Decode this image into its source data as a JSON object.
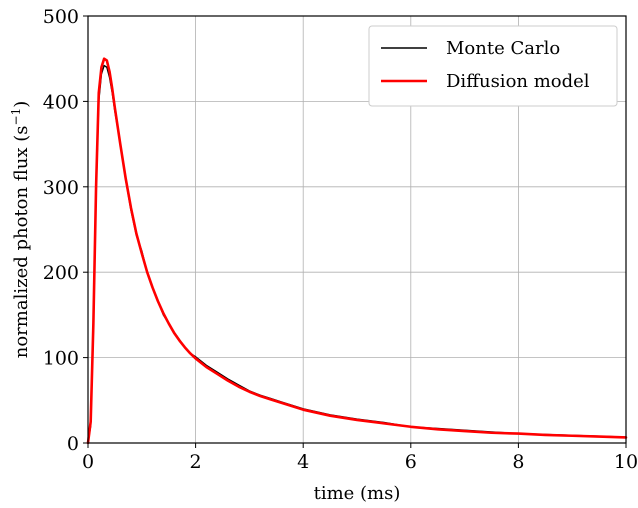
{
  "chart_data": {
    "type": "line",
    "title": "",
    "xlabel": "time (ms)",
    "ylabel": {
      "base": "normalized photon flux (s",
      "sup": "−1",
      "close": ")"
    },
    "xlim": [
      0,
      10
    ],
    "ylim": [
      0,
      500
    ],
    "xticks": [
      0,
      2,
      4,
      6,
      8,
      10
    ],
    "yticks": [
      0,
      100,
      200,
      300,
      400,
      500
    ],
    "xtick_labels": [
      "0",
      "2",
      "4",
      "6",
      "8",
      "10"
    ],
    "ytick_labels": [
      "0",
      "100",
      "200",
      "300",
      "400",
      "500"
    ],
    "grid": true,
    "legend_position": "top-right",
    "series": [
      {
        "name": "Monte Carlo",
        "color": "#000000",
        "x": [
          0.0,
          0.05,
          0.1,
          0.15,
          0.2,
          0.25,
          0.3,
          0.35,
          0.4,
          0.45,
          0.5,
          0.6,
          0.7,
          0.8,
          0.9,
          1.0,
          1.1,
          1.2,
          1.3,
          1.4,
          1.5,
          1.6,
          1.7,
          1.8,
          1.9,
          2.0,
          2.2,
          2.4,
          2.6,
          2.8,
          3.0,
          3.2,
          3.4,
          3.6,
          3.8,
          4.0,
          4.5,
          5.0,
          5.5,
          6.0,
          6.5,
          7.0,
          7.5,
          8.0,
          8.5,
          9.0,
          9.5,
          10.0
        ],
        "values": [
          0,
          20,
          130,
          290,
          400,
          432,
          442,
          440,
          428,
          410,
          388,
          350,
          308,
          272,
          243,
          225,
          200,
          182,
          166,
          150,
          140,
          130,
          121,
          112,
          105,
          101,
          91,
          83,
          75,
          68,
          61,
          56,
          52,
          48,
          44,
          40,
          33,
          28,
          24,
          19,
          17,
          15,
          13,
          11,
          10,
          9,
          8,
          7
        ]
      },
      {
        "name": "Diffusion model",
        "color": "#ff0000",
        "x": [
          0.0,
          0.05,
          0.1,
          0.15,
          0.2,
          0.25,
          0.3,
          0.35,
          0.4,
          0.45,
          0.5,
          0.6,
          0.7,
          0.8,
          0.9,
          1.0,
          1.1,
          1.2,
          1.3,
          1.4,
          1.5,
          1.6,
          1.7,
          1.8,
          1.9,
          2.0,
          2.2,
          2.4,
          2.6,
          2.8,
          3.0,
          3.2,
          3.4,
          3.6,
          3.8,
          4.0,
          4.5,
          5.0,
          5.5,
          6.0,
          6.5,
          7.0,
          7.5,
          8.0,
          8.5,
          9.0,
          9.5,
          10.0
        ],
        "values": [
          0,
          25,
          140,
          300,
          410,
          440,
          450,
          448,
          435,
          415,
          392,
          350,
          310,
          275,
          245,
          222,
          200,
          182,
          166,
          152,
          140,
          129,
          120,
          112,
          105,
          99,
          89,
          81,
          73,
          66,
          60,
          55,
          51,
          47,
          43,
          39,
          32,
          27,
          23,
          19,
          16,
          14,
          12,
          11,
          9.5,
          8.5,
          7.5,
          6.5
        ]
      }
    ]
  }
}
